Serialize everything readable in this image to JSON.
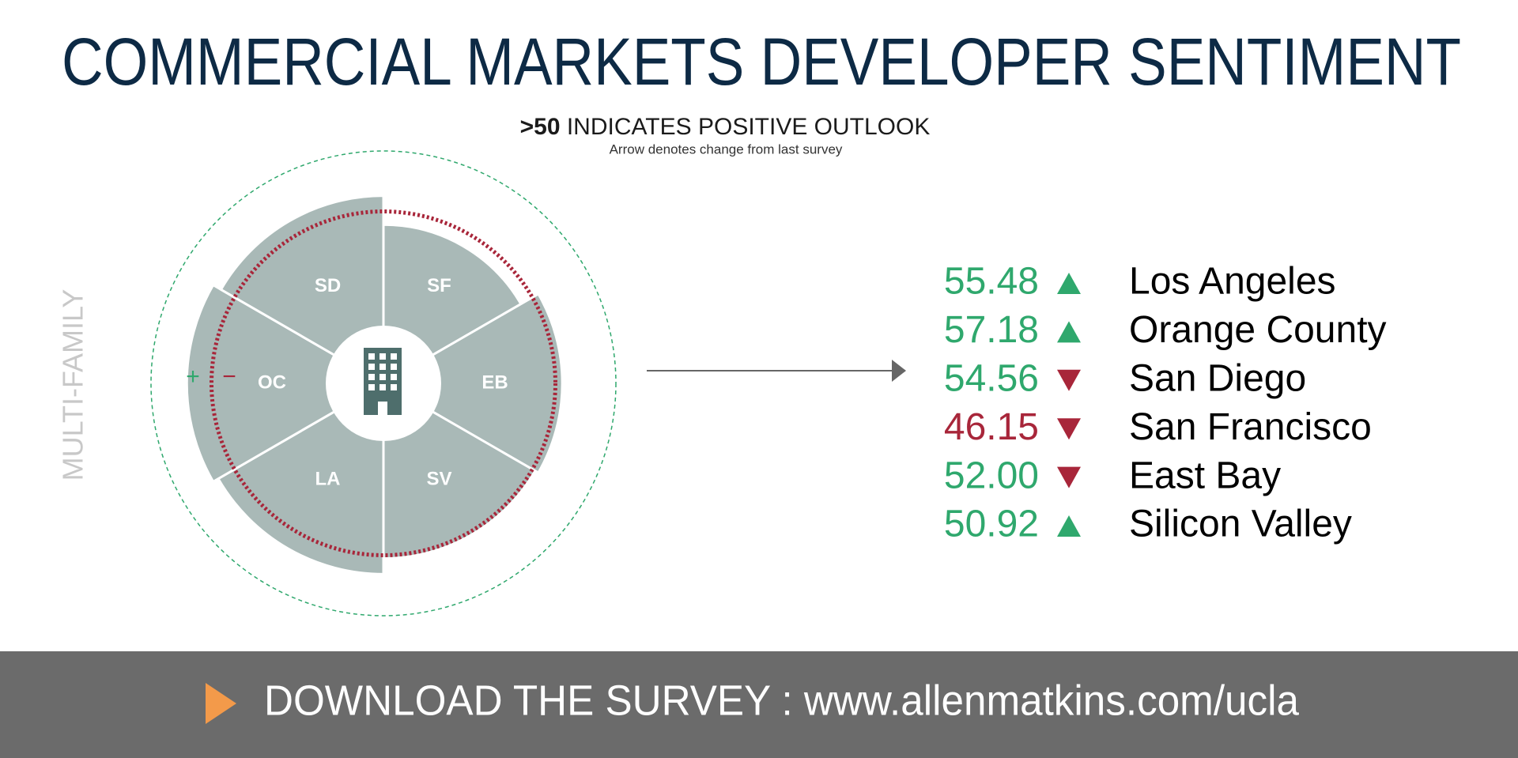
{
  "chart_data": {
    "type": "radial",
    "title": "COMMERCIAL MARKETS DEVELOPER SENTIMENT",
    "subtitle_bold": ">50",
    "subtitle": "INDICATES POSITIVE OUTLOOK",
    "note": "Arrow denotes change from last survey",
    "y_label": "MULTI-FAMILY",
    "plus_sign": "+",
    "minus_sign": "−",
    "categories": [
      "LA",
      "OC",
      "SD",
      "SF",
      "EB",
      "SV"
    ],
    "names": [
      "Los Angeles",
      "Orange County",
      "San Diego",
      "San Francisco",
      "East Bay",
      "Silicon Valley"
    ],
    "values": [
      55.48,
      57.18,
      54.56,
      46.15,
      52.0,
      50.92
    ],
    "value_labels": [
      "55.48",
      "57.18",
      "54.56",
      "46.15",
      "52.00",
      "50.92"
    ],
    "changes": [
      "up",
      "up",
      "down",
      "down",
      "down",
      "up"
    ],
    "reference": 50,
    "rlim": [
      0,
      60
    ],
    "wedge_color": "#a9b9b7",
    "positive_color": "#2fa86d",
    "negative_color": "#a8263a"
  },
  "footer": {
    "text": "DOWNLOAD THE SURVEY : www.allenmatkins.com/ucla"
  }
}
